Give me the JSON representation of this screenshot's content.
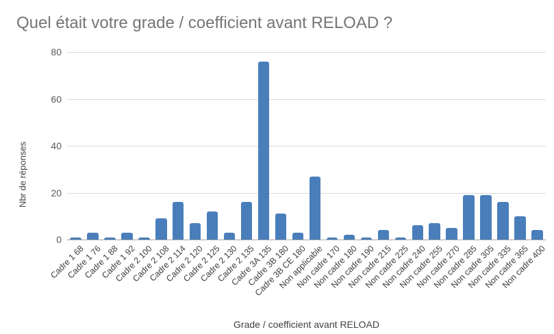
{
  "chart_data": {
    "type": "bar",
    "title": "Quel était votre grade / coefficient avant RELOAD ?",
    "xlabel": "Grade / coefficient avant RELOAD",
    "ylabel": "Nbr de réponses",
    "ylim": [
      0,
      80
    ],
    "yticks": [
      0,
      20,
      40,
      60,
      80
    ],
    "grid": true,
    "legend": null,
    "bar_color": "#4a7ebb",
    "categories": [
      "Cadre 1 68",
      "Cadre 1 76",
      "Cadre 1 88",
      "Cadre 1 92",
      "Cadre 2 100",
      "Cadre 2 108",
      "Cadre 2 114",
      "Cadre 2 120",
      "Cadre 2 125",
      "Cadre 2 130",
      "Cadre 2 135",
      "Cadre 3A 135",
      "Cadre 3B 180",
      "Cadre 3B CE 180",
      "Non applicable",
      "Non cadre 170",
      "Non cadre 180",
      "Non cadre 190",
      "Non cadre 215",
      "Non cadre 225",
      "Non cadre 240",
      "Non cadre 255",
      "Non cadre 270",
      "Non cadre 285",
      "Non cadre 305",
      "Non cadre 335",
      "Non cadre 365",
      "Non cadre 400"
    ],
    "values": [
      1,
      3,
      1,
      3,
      1,
      9,
      16,
      7,
      12,
      3,
      16,
      76,
      11,
      3,
      27,
      1,
      2,
      1,
      4,
      1,
      6,
      7,
      5,
      19,
      19,
      16,
      10,
      4
    ]
  }
}
